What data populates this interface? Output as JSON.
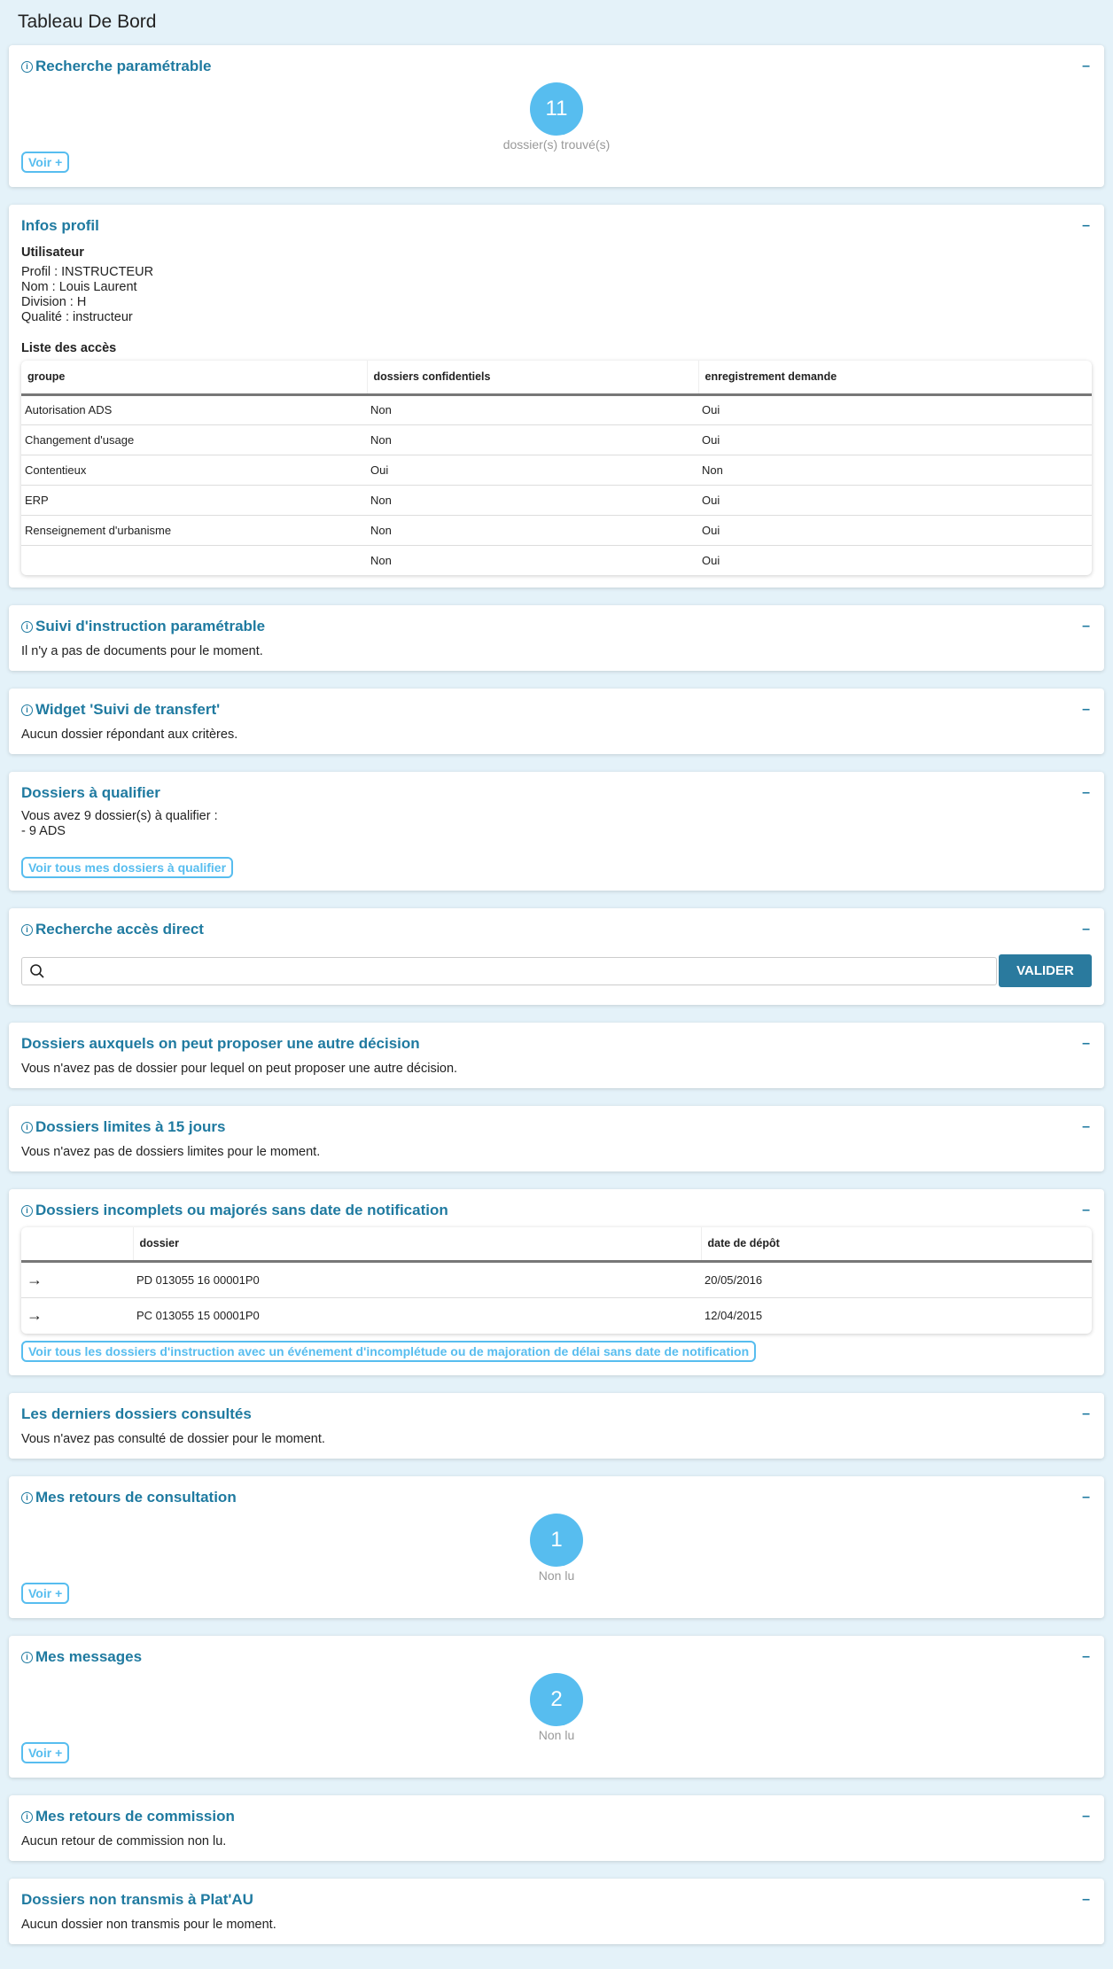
{
  "page_title": "Tableau De Bord",
  "collapse_symbol": "–",
  "info_symbol": "i",
  "recherche": {
    "title": "Recherche paramétrable",
    "count": "11",
    "label": "dossier(s) trouvé(s)",
    "button": "Voir +"
  },
  "profil": {
    "title": "Infos profil",
    "user_heading": "Utilisateur",
    "lines": [
      "Profil : INSTRUCTEUR",
      "Nom : Louis Laurent",
      "Division : H",
      "Qualité : instructeur"
    ],
    "access_heading": "Liste des accès",
    "columns": [
      "groupe",
      "dossiers confidentiels",
      "enregistrement demande"
    ],
    "rows": [
      [
        "Autorisation ADS",
        "Non",
        "Oui"
      ],
      [
        "Changement d'usage",
        "Non",
        "Oui"
      ],
      [
        "Contentieux",
        "Oui",
        "Non"
      ],
      [
        "ERP",
        "Non",
        "Oui"
      ],
      [
        "Renseignement d'urbanisme",
        "Non",
        "Oui"
      ],
      [
        "",
        "Non",
        "Oui"
      ]
    ]
  },
  "suivi": {
    "title": "Suivi d'instruction paramétrable",
    "text": "Il n'y a pas de documents pour le moment."
  },
  "transfert": {
    "title": "Widget 'Suivi de transfert'",
    "text": "Aucun dossier répondant aux critères."
  },
  "qualifier": {
    "title": "Dossiers à qualifier",
    "line1": "Vous avez 9 dossier(s) à qualifier :",
    "line2": "- 9 ADS",
    "button": "Voir tous mes dossiers à qualifier"
  },
  "acces_direct": {
    "title": "Recherche accès direct",
    "value": "",
    "button": "VALIDER"
  },
  "autre_decision": {
    "title": "Dossiers auxquels on peut proposer une autre décision",
    "text": "Vous n'avez pas de dossier pour lequel on peut proposer une autre décision."
  },
  "limites": {
    "title": "Dossiers limites à 15 jours",
    "text": "Vous n'avez pas de dossiers limites pour le moment."
  },
  "incomplets": {
    "title": "Dossiers incomplets ou majorés sans date de notification",
    "columns": [
      "",
      "dossier",
      "date de dépôt"
    ],
    "rows": [
      [
        "PD 013055 16 00001P0",
        "20/05/2016"
      ],
      [
        "PC 013055 15 00001P0",
        "12/04/2015"
      ]
    ],
    "button": "Voir tous les dossiers d'instruction avec un événement d'incomplétude ou de majoration de délai sans date de notification"
  },
  "derniers": {
    "title": "Les derniers dossiers consultés",
    "text": "Vous n'avez pas consulté de dossier pour le moment."
  },
  "retours": {
    "title": "Mes retours de consultation",
    "count": "1",
    "label": "Non lu",
    "button": "Voir +"
  },
  "messages": {
    "title": "Mes messages",
    "count": "2",
    "label": "Non lu",
    "button": "Voir +"
  },
  "commission": {
    "title": "Mes retours de commission",
    "text": "Aucun retour de commission non lu."
  },
  "platau": {
    "title": "Dossiers non transmis à Plat'AU",
    "text": "Aucun dossier non transmis pour le moment."
  },
  "colors": {
    "accent": "#1f7aa0",
    "bubble": "#57bdef",
    "background": "#e4f2f9",
    "button": "#2a7a9e"
  }
}
